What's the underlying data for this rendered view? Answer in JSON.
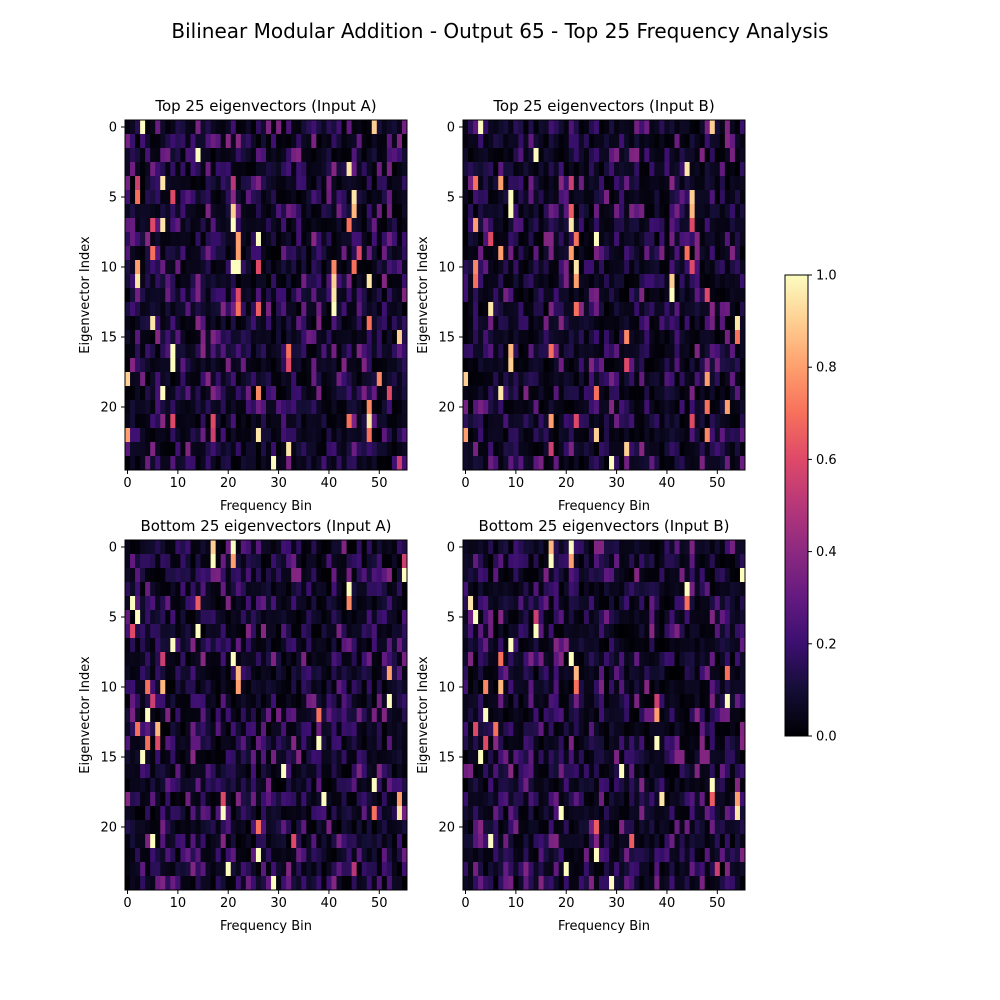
{
  "figure": {
    "title": "Bilinear Modular Addition - Output 65 - Top 25 Frequency Analysis"
  },
  "colorbar": {
    "colormap": "magma",
    "min": 0.0,
    "max": 1.0,
    "ticks": [
      0.0,
      0.2,
      0.4,
      0.6,
      0.8,
      1.0
    ],
    "tick_labels": [
      "0.0",
      "0.2",
      "0.4",
      "0.6",
      "0.8",
      "1.0"
    ]
  },
  "chart_data": [
    {
      "type": "heatmap",
      "title": "Top 25 eigenvectors (Input A)",
      "xlabel": "Frequency Bin",
      "ylabel": "Eigenvector Index",
      "x_count": 56,
      "y_count": 25,
      "xticks": [
        0,
        10,
        20,
        30,
        40,
        50
      ],
      "yticks": [
        0,
        5,
        10,
        15,
        20
      ],
      "value_range": [
        0,
        1
      ],
      "hotspots": [
        [
          0,
          3,
          1.0
        ],
        [
          0,
          49,
          0.9
        ],
        [
          2,
          14,
          1.0
        ],
        [
          3,
          44,
          0.95
        ],
        [
          4,
          7,
          0.95
        ],
        [
          4,
          21,
          0.5
        ],
        [
          4,
          2,
          0.55
        ],
        [
          5,
          2,
          0.7
        ],
        [
          5,
          45,
          0.95
        ],
        [
          5,
          9,
          0.6
        ],
        [
          6,
          45,
          0.85
        ],
        [
          6,
          21,
          0.9
        ],
        [
          7,
          7,
          0.95
        ],
        [
          7,
          21,
          1.0
        ],
        [
          7,
          44,
          0.7
        ],
        [
          7,
          5,
          0.6
        ],
        [
          8,
          26,
          1.0
        ],
        [
          8,
          22,
          0.8
        ],
        [
          9,
          22,
          0.8
        ],
        [
          9,
          5,
          0.7
        ],
        [
          9,
          46,
          0.6
        ],
        [
          10,
          21,
          1.0
        ],
        [
          10,
          22,
          1.0
        ],
        [
          10,
          41,
          0.75
        ],
        [
          10,
          2,
          0.8
        ],
        [
          10,
          45,
          0.7
        ],
        [
          10,
          26,
          0.6
        ],
        [
          11,
          2,
          0.95
        ],
        [
          11,
          41,
          0.9
        ],
        [
          11,
          48,
          0.95
        ],
        [
          12,
          41,
          0.95
        ],
        [
          12,
          22,
          0.6
        ],
        [
          13,
          41,
          1.0
        ],
        [
          13,
          26,
          0.65
        ],
        [
          13,
          22,
          0.7
        ],
        [
          14,
          5,
          0.95
        ],
        [
          14,
          48,
          0.7
        ],
        [
          15,
          54,
          0.9
        ],
        [
          16,
          9,
          1.0
        ],
        [
          16,
          32,
          0.7
        ],
        [
          17,
          9,
          1.0
        ],
        [
          17,
          32,
          0.6
        ],
        [
          18,
          0,
          0.9
        ],
        [
          18,
          50,
          0.75
        ],
        [
          19,
          7,
          1.0
        ],
        [
          19,
          26,
          0.75
        ],
        [
          19,
          52,
          0.6
        ],
        [
          20,
          48,
          0.75
        ],
        [
          21,
          48,
          0.95
        ],
        [
          21,
          9,
          0.6
        ],
        [
          21,
          17,
          0.6
        ],
        [
          21,
          44,
          0.7
        ],
        [
          22,
          0,
          0.8
        ],
        [
          22,
          26,
          0.95
        ],
        [
          22,
          17,
          0.55
        ],
        [
          22,
          48,
          0.7
        ],
        [
          23,
          32,
          0.95
        ],
        [
          24,
          29,
          1.0
        ],
        [
          24,
          54,
          0.55
        ]
      ]
    },
    {
      "type": "heatmap",
      "title": "Top 25 eigenvectors (Input B)",
      "xlabel": "Frequency Bin",
      "ylabel": "Eigenvector Index",
      "x_count": 56,
      "y_count": 25,
      "xticks": [
        0,
        10,
        20,
        30,
        40,
        50
      ],
      "yticks": [
        0,
        5,
        10,
        15,
        20
      ],
      "value_range": [
        0,
        1
      ],
      "hotspots": [
        [
          0,
          3,
          1.0
        ],
        [
          0,
          49,
          0.9
        ],
        [
          2,
          14,
          1.0
        ],
        [
          3,
          44,
          0.95
        ],
        [
          4,
          2,
          0.7
        ],
        [
          4,
          7,
          0.8
        ],
        [
          4,
          21,
          0.55
        ],
        [
          5,
          9,
          1.0
        ],
        [
          5,
          45,
          0.9
        ],
        [
          6,
          9,
          1.0
        ],
        [
          6,
          45,
          0.85
        ],
        [
          6,
          21,
          0.65
        ],
        [
          7,
          2,
          0.8
        ],
        [
          7,
          21,
          0.95
        ],
        [
          7,
          45,
          0.6
        ],
        [
          8,
          26,
          1.0
        ],
        [
          8,
          22,
          0.7
        ],
        [
          8,
          5,
          0.6
        ],
        [
          9,
          7,
          0.8
        ],
        [
          9,
          21,
          0.8
        ],
        [
          9,
          44,
          0.7
        ],
        [
          10,
          22,
          0.95
        ],
        [
          10,
          2,
          0.75
        ],
        [
          10,
          45,
          0.6
        ],
        [
          11,
          41,
          0.9
        ],
        [
          11,
          2,
          0.7
        ],
        [
          11,
          22,
          0.8
        ],
        [
          12,
          41,
          1.0
        ],
        [
          12,
          48,
          0.6
        ],
        [
          13,
          5,
          0.95
        ],
        [
          13,
          22,
          0.7
        ],
        [
          14,
          54,
          0.95
        ],
        [
          15,
          54,
          0.7
        ],
        [
          15,
          32,
          0.75
        ],
        [
          16,
          9,
          0.85
        ],
        [
          16,
          17,
          0.7
        ],
        [
          17,
          9,
          0.9
        ],
        [
          17,
          32,
          0.6
        ],
        [
          18,
          0,
          0.9
        ],
        [
          18,
          48,
          0.8
        ],
        [
          19,
          7,
          0.95
        ],
        [
          19,
          26,
          0.7
        ],
        [
          20,
          52,
          0.8
        ],
        [
          20,
          48,
          0.7
        ],
        [
          21,
          17,
          0.8
        ],
        [
          21,
          22,
          0.6
        ],
        [
          21,
          45,
          0.6
        ],
        [
          22,
          0,
          0.8
        ],
        [
          22,
          26,
          0.9
        ],
        [
          22,
          48,
          0.75
        ],
        [
          23,
          32,
          0.9
        ],
        [
          23,
          17,
          0.55
        ],
        [
          24,
          29,
          1.0
        ]
      ]
    },
    {
      "type": "heatmap",
      "title": "Bottom 25 eigenvectors (Input A)",
      "xlabel": "Frequency Bin",
      "ylabel": "Eigenvector Index",
      "x_count": 56,
      "y_count": 25,
      "xticks": [
        0,
        10,
        20,
        30,
        40,
        50
      ],
      "yticks": [
        0,
        5,
        10,
        15,
        20
      ],
      "value_range": [
        0,
        1
      ],
      "hotspots": [
        [
          0,
          17,
          0.9
        ],
        [
          0,
          21,
          1.0
        ],
        [
          1,
          21,
          0.8
        ],
        [
          1,
          17,
          1.0
        ],
        [
          1,
          55,
          0.55
        ],
        [
          2,
          55,
          1.0
        ],
        [
          3,
          44,
          1.0
        ],
        [
          4,
          1,
          1.0
        ],
        [
          4,
          44,
          0.75
        ],
        [
          4,
          14,
          0.65
        ],
        [
          5,
          2,
          1.0
        ],
        [
          6,
          14,
          1.0
        ],
        [
          6,
          1,
          0.6
        ],
        [
          7,
          9,
          1.0
        ],
        [
          8,
          21,
          1.0
        ],
        [
          8,
          7,
          0.55
        ],
        [
          9,
          22,
          0.85
        ],
        [
          9,
          52,
          0.8
        ],
        [
          10,
          4,
          0.7
        ],
        [
          10,
          22,
          0.8
        ],
        [
          10,
          7,
          0.85
        ],
        [
          11,
          52,
          1.0
        ],
        [
          11,
          5,
          0.55
        ],
        [
          12,
          4,
          1.0
        ],
        [
          12,
          38,
          0.7
        ],
        [
          13,
          6,
          0.85
        ],
        [
          13,
          2,
          0.7
        ],
        [
          14,
          4,
          0.7
        ],
        [
          14,
          6,
          0.6
        ],
        [
          14,
          38,
          1.0
        ],
        [
          15,
          3,
          1.0
        ],
        [
          16,
          31,
          1.0
        ],
        [
          17,
          49,
          1.0
        ],
        [
          18,
          39,
          1.0
        ],
        [
          18,
          54,
          0.8
        ],
        [
          18,
          19,
          0.6
        ],
        [
          19,
          49,
          0.7
        ],
        [
          19,
          19,
          1.0
        ],
        [
          19,
          54,
          0.95
        ],
        [
          20,
          26,
          0.7
        ],
        [
          21,
          5,
          1.0
        ],
        [
          21,
          33,
          0.6
        ],
        [
          22,
          26,
          1.0
        ],
        [
          23,
          20,
          1.0
        ],
        [
          23,
          45,
          0.5
        ],
        [
          24,
          29,
          1.0
        ]
      ]
    },
    {
      "type": "heatmap",
      "title": "Bottom 25 eigenvectors (Input B)",
      "xlabel": "Frequency Bin",
      "ylabel": "Eigenvector Index",
      "x_count": 56,
      "y_count": 25,
      "xticks": [
        0,
        10,
        20,
        30,
        40,
        50
      ],
      "yticks": [
        0,
        5,
        10,
        15,
        20
      ],
      "value_range": [
        0,
        1
      ],
      "hotspots": [
        [
          0,
          17,
          0.85
        ],
        [
          0,
          21,
          1.0
        ],
        [
          1,
          21,
          0.8
        ],
        [
          1,
          17,
          1.0
        ],
        [
          2,
          55,
          1.0
        ],
        [
          3,
          44,
          1.0
        ],
        [
          4,
          1,
          0.95
        ],
        [
          4,
          44,
          0.7
        ],
        [
          5,
          2,
          1.0
        ],
        [
          5,
          14,
          0.55
        ],
        [
          6,
          14,
          1.0
        ],
        [
          7,
          9,
          1.0
        ],
        [
          8,
          21,
          1.0
        ],
        [
          8,
          7,
          0.7
        ],
        [
          9,
          22,
          0.85
        ],
        [
          9,
          52,
          0.7
        ],
        [
          10,
          4,
          0.75
        ],
        [
          10,
          7,
          0.85
        ],
        [
          10,
          22,
          0.7
        ],
        [
          11,
          52,
          1.0
        ],
        [
          11,
          38,
          0.55
        ],
        [
          12,
          4,
          1.0
        ],
        [
          12,
          38,
          0.8
        ],
        [
          13,
          6,
          0.7
        ],
        [
          13,
          2,
          0.6
        ],
        [
          14,
          4,
          0.6
        ],
        [
          14,
          38,
          1.0
        ],
        [
          15,
          3,
          1.0
        ],
        [
          16,
          31,
          1.0
        ],
        [
          17,
          49,
          1.0
        ],
        [
          18,
          39,
          0.95
        ],
        [
          18,
          54,
          0.8
        ],
        [
          18,
          49,
          0.65
        ],
        [
          19,
          19,
          1.0
        ],
        [
          19,
          54,
          0.95
        ],
        [
          20,
          26,
          0.65
        ],
        [
          21,
          5,
          1.0
        ],
        [
          21,
          33,
          0.65
        ],
        [
          22,
          26,
          1.0
        ],
        [
          23,
          20,
          1.0
        ],
        [
          23,
          50,
          0.55
        ],
        [
          24,
          29,
          1.0
        ]
      ]
    }
  ]
}
